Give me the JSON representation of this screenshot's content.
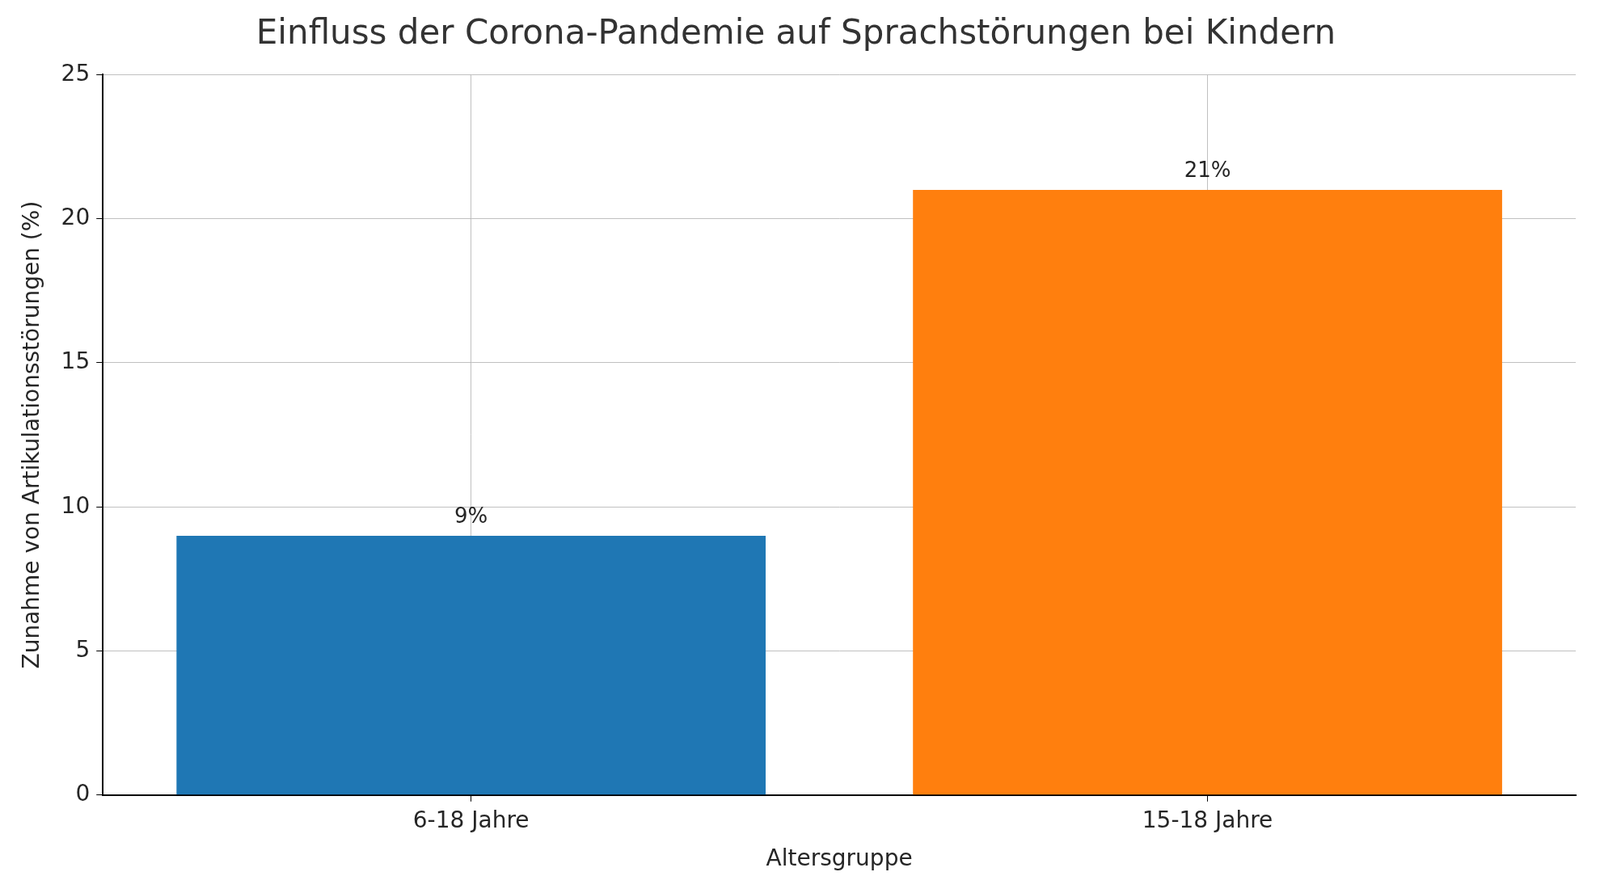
{
  "chart_data": {
    "type": "bar",
    "title": "Einfluss der Corona-Pandemie auf Sprachstörungen bei Kindern",
    "x_label": "Altersgruppe",
    "y_label": "Zunahme von Artikulationsstörungen (%)",
    "categories": [
      "6-18 Jahre",
      "15-18 Jahre"
    ],
    "values": [
      9,
      21
    ],
    "value_labels": [
      "9%",
      "21%"
    ],
    "colors": [
      "#1f77b4",
      "#ff7f0e"
    ],
    "ylim": [
      0,
      25
    ],
    "yticks": [
      0,
      5,
      10,
      15,
      20,
      25
    ],
    "grid": true,
    "data_labels": true
  }
}
